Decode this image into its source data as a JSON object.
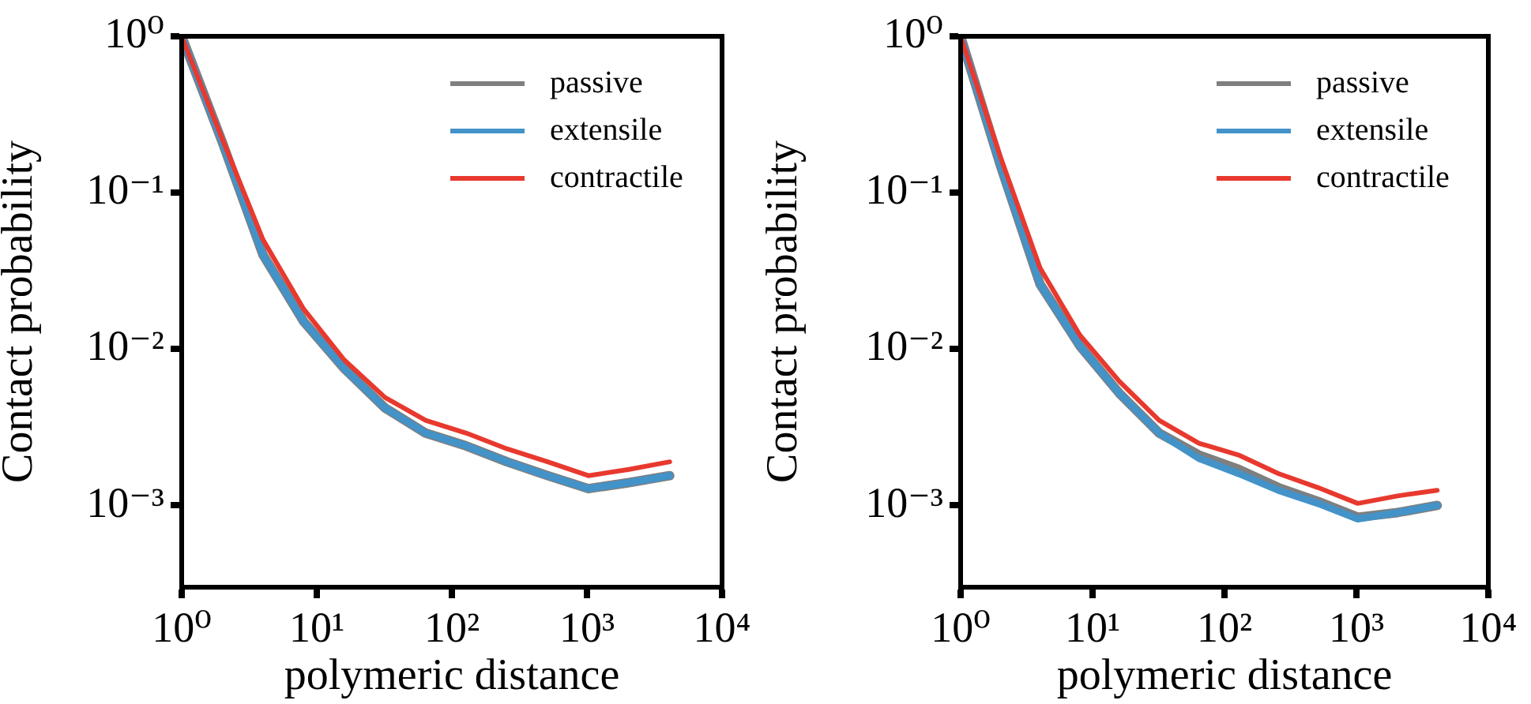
{
  "chart_data": [
    {
      "type": "line",
      "xlabel": "polymeric distance",
      "ylabel": "Contact probability",
      "log": "xy",
      "grid": false,
      "legend": "top right",
      "marker": "none",
      "line_style": "solid",
      "x": [
        1,
        2,
        4,
        8,
        16,
        32,
        64,
        128,
        256,
        512,
        1024,
        2048,
        4096
      ],
      "xlim": [
        1,
        10000
      ],
      "xticks": [
        {
          "value": 1,
          "label": "10⁰"
        },
        {
          "value": 10,
          "label": "10¹"
        },
        {
          "value": 100,
          "label": "10²"
        },
        {
          "value": 1000,
          "label": "10³"
        },
        {
          "value": 10000,
          "label": "10⁴"
        }
      ],
      "ylim": [
        0.0003,
        1
      ],
      "yticks": [
        {
          "value": 0.001,
          "label": "10⁻³"
        },
        {
          "value": 0.01,
          "label": "10⁻²"
        },
        {
          "value": 0.1,
          "label": "10⁻¹"
        },
        {
          "value": 1,
          "label": "10⁰"
        }
      ],
      "series": [
        {
          "name": "passive",
          "color": "#7f7f7f",
          "values": [
            1,
            0.21,
            0.04,
            0.015,
            0.0075,
            0.0042,
            0.0029,
            0.0024,
            0.0019,
            0.00155,
            0.00128,
            0.0014,
            0.00155
          ]
        },
        {
          "name": "extensile",
          "color": "#4393c9",
          "values": [
            1,
            0.21,
            0.04,
            0.015,
            0.0075,
            0.0042,
            0.0029,
            0.0024,
            0.0019,
            0.00155,
            0.00128,
            0.0014,
            0.00155
          ]
        },
        {
          "name": "contractile",
          "color": "#e8392e",
          "values": [
            1,
            0.22,
            0.05,
            0.018,
            0.0085,
            0.0049,
            0.0035,
            0.0029,
            0.0023,
            0.0019,
            0.00155,
            0.0017,
            0.0019
          ]
        }
      ]
    },
    {
      "type": "line",
      "xlabel": "polymeric distance",
      "ylabel": "Contact probability",
      "log": "xy",
      "grid": false,
      "legend": "top right",
      "marker": "none",
      "line_style": "solid",
      "x": [
        1,
        2,
        4,
        8,
        16,
        32,
        64,
        128,
        256,
        512,
        1024,
        2048,
        4096
      ],
      "xlim": [
        1,
        10000
      ],
      "xticks": [
        {
          "value": 1,
          "label": "10⁰"
        },
        {
          "value": 10,
          "label": "10¹"
        },
        {
          "value": 100,
          "label": "10²"
        },
        {
          "value": 1000,
          "label": "10³"
        },
        {
          "value": 10000,
          "label": "10⁴"
        }
      ],
      "ylim": [
        0.0003,
        1
      ],
      "yticks": [
        {
          "value": 0.001,
          "label": "10⁻³"
        },
        {
          "value": 0.01,
          "label": "10⁻²"
        },
        {
          "value": 0.1,
          "label": "10⁻¹"
        },
        {
          "value": 1,
          "label": "10⁰"
        }
      ],
      "series": [
        {
          "name": "passive",
          "color": "#7f7f7f",
          "values": [
            1,
            0.15,
            0.026,
            0.0105,
            0.0052,
            0.0029,
            0.0021,
            0.0017,
            0.0013,
            0.00106,
            0.00084,
            0.0009,
            0.001
          ]
        },
        {
          "name": "extensile",
          "color": "#4393c9",
          "values": [
            1,
            0.15,
            0.026,
            0.0105,
            0.0052,
            0.0029,
            0.002,
            0.0016,
            0.00125,
            0.00103,
            0.00082,
            0.0009,
            0.001
          ]
        },
        {
          "name": "contractile",
          "color": "#e8392e",
          "values": [
            1,
            0.17,
            0.033,
            0.0123,
            0.0062,
            0.0035,
            0.0025,
            0.0021,
            0.0016,
            0.0013,
            0.00103,
            0.00115,
            0.00125
          ]
        }
      ]
    }
  ]
}
